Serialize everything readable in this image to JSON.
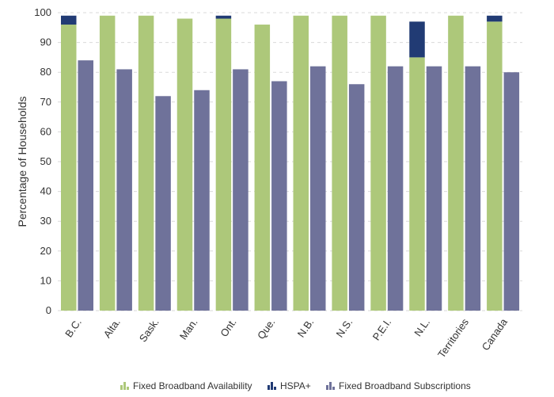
{
  "chart_data": {
    "type": "bar",
    "stacked_series_on_first": true,
    "categories": [
      "B.C.",
      "Alta.",
      "Sask.",
      "Man.",
      "Ont.",
      "Que.",
      "N.B.",
      "N.S.",
      "P.E.I.",
      "N.L.",
      "Territories",
      "Canada"
    ],
    "series": [
      {
        "name": "Fixed Broadband Availability",
        "values": [
          96,
          99,
          99,
          98,
          98,
          96,
          99,
          99,
          99,
          85,
          99,
          97
        ],
        "color": "#adc87a"
      },
      {
        "name": "HSPA+",
        "values": [
          3,
          0,
          0,
          0,
          1,
          0,
          0,
          0,
          0,
          12,
          0,
          2
        ],
        "color": "#213b74"
      },
      {
        "name": "Fixed Broadband Subscriptions",
        "values": [
          84,
          81,
          72,
          74,
          81,
          77,
          82,
          76,
          82,
          82,
          82,
          80
        ],
        "color": "#6f729a"
      }
    ],
    "ylabel": "Percentage of Households",
    "xlabel": "",
    "ylim": [
      0,
      100
    ],
    "yticks": [
      0,
      10,
      20,
      30,
      40,
      50,
      60,
      70,
      80,
      90,
      100
    ],
    "grid": true,
    "legend_position": "bottom"
  }
}
